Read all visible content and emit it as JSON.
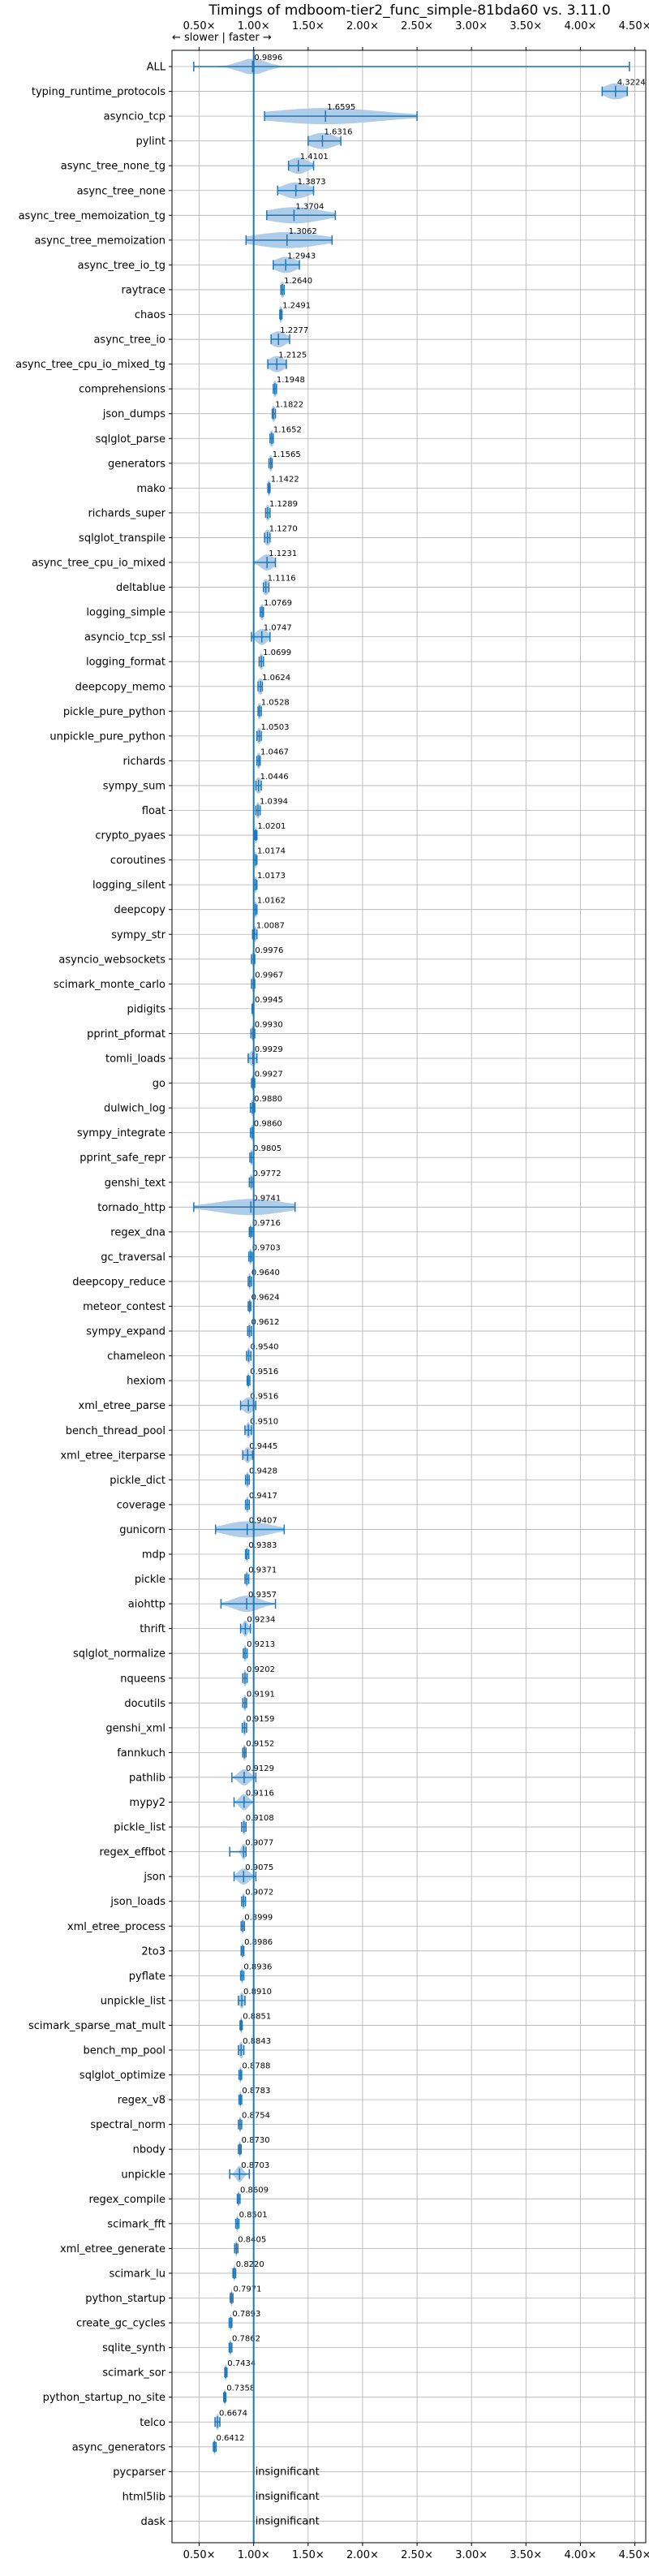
{
  "chart_data": {
    "type": "violin",
    "title": "Timings of mdboom-tier2_func_simple-81bda60 vs. 3.11.0",
    "direction_label": "← slower | faster →",
    "x_tick_labels": [
      "0.50×",
      "1.00×",
      "1.50×",
      "2.00×",
      "2.50×",
      "3.00×",
      "3.50×",
      "4.00×",
      "4.50×"
    ],
    "x_ticks": [
      0.5,
      1.0,
      1.5,
      2.0,
      2.5,
      3.0,
      3.5,
      4.0,
      4.5
    ],
    "xlim": [
      0.25,
      4.6
    ],
    "reference_line": 1.0,
    "grid": true,
    "accent_color": "#1f77b4",
    "violin_color": "#a6c8e6",
    "insignificant_label": "insignificant",
    "benchmarks": [
      {
        "name": "ALL",
        "value": 0.9896,
        "label": "0.9896",
        "lo": 0.45,
        "hi": 4.45,
        "spread": 0.12
      },
      {
        "name": "typing_runtime_protocols",
        "value": 4.3224,
        "label": "4.3224",
        "lo": 4.2,
        "hi": 4.43,
        "spread": 0.1
      },
      {
        "name": "asyncio_tcp",
        "value": 1.6595,
        "label": "1.6595",
        "lo": 1.1,
        "hi": 2.5,
        "spread": 0.5
      },
      {
        "name": "pylint",
        "value": 1.6316,
        "label": "1.6316",
        "lo": 1.5,
        "hi": 1.8,
        "spread": 0.12
      },
      {
        "name": "async_tree_none_tg",
        "value": 1.4101,
        "label": "1.4101",
        "lo": 1.32,
        "hi": 1.55,
        "spread": 0.09
      },
      {
        "name": "async_tree_none",
        "value": 1.3873,
        "label": "1.3873",
        "lo": 1.22,
        "hi": 1.55,
        "spread": 0.12
      },
      {
        "name": "async_tree_memoization_tg",
        "value": 1.3704,
        "label": "1.3704",
        "lo": 1.12,
        "hi": 1.75,
        "spread": 0.25
      },
      {
        "name": "async_tree_memoization",
        "value": 1.3062,
        "label": "1.3062",
        "lo": 0.93,
        "hi": 1.72,
        "spread": 0.3
      },
      {
        "name": "async_tree_io_tg",
        "value": 1.2943,
        "label": "1.2943",
        "lo": 1.18,
        "hi": 1.42,
        "spread": 0.1
      },
      {
        "name": "raytrace",
        "value": 1.264,
        "label": "1.2640",
        "lo": 1.25,
        "hi": 1.28,
        "spread": 0.02
      },
      {
        "name": "chaos",
        "value": 1.2491,
        "label": "1.2491",
        "lo": 1.24,
        "hi": 1.26,
        "spread": 0.02
      },
      {
        "name": "async_tree_io",
        "value": 1.2277,
        "label": "1.2277",
        "lo": 1.16,
        "hi": 1.33,
        "spread": 0.07
      },
      {
        "name": "async_tree_cpu_io_mixed_tg",
        "value": 1.2125,
        "label": "1.2125",
        "lo": 1.13,
        "hi": 1.3,
        "spread": 0.07
      },
      {
        "name": "comprehensions",
        "value": 1.1948,
        "label": "1.1948",
        "lo": 1.18,
        "hi": 1.21,
        "spread": 0.02
      },
      {
        "name": "json_dumps",
        "value": 1.1822,
        "label": "1.1822",
        "lo": 1.17,
        "hi": 1.2,
        "spread": 0.02
      },
      {
        "name": "sqlglot_parse",
        "value": 1.1652,
        "label": "1.1652",
        "lo": 1.15,
        "hi": 1.18,
        "spread": 0.02
      },
      {
        "name": "generators",
        "value": 1.1565,
        "label": "1.1565",
        "lo": 1.14,
        "hi": 1.17,
        "spread": 0.02
      },
      {
        "name": "mako",
        "value": 1.1422,
        "label": "1.1422",
        "lo": 1.13,
        "hi": 1.15,
        "spread": 0.02
      },
      {
        "name": "richards_super",
        "value": 1.1289,
        "label": "1.1289",
        "lo": 1.11,
        "hi": 1.15,
        "spread": 0.02
      },
      {
        "name": "sqlglot_transpile",
        "value": 1.127,
        "label": "1.1270",
        "lo": 1.1,
        "hi": 1.15,
        "spread": 0.03
      },
      {
        "name": "async_tree_cpu_io_mixed",
        "value": 1.1231,
        "label": "1.1231",
        "lo": 1.0,
        "hi": 1.2,
        "spread": 0.06
      },
      {
        "name": "deltablue",
        "value": 1.1116,
        "label": "1.1116",
        "lo": 1.09,
        "hi": 1.14,
        "spread": 0.03
      },
      {
        "name": "logging_simple",
        "value": 1.0769,
        "label": "1.0769",
        "lo": 1.06,
        "hi": 1.09,
        "spread": 0.02
      },
      {
        "name": "asyncio_tcp_ssl",
        "value": 1.0747,
        "label": "1.0747",
        "lo": 0.98,
        "hi": 1.15,
        "spread": 0.05
      },
      {
        "name": "logging_format",
        "value": 1.0699,
        "label": "1.0699",
        "lo": 1.05,
        "hi": 1.09,
        "spread": 0.02
      },
      {
        "name": "deepcopy_memo",
        "value": 1.0624,
        "label": "1.0624",
        "lo": 1.04,
        "hi": 1.08,
        "spread": 0.03
      },
      {
        "name": "pickle_pure_python",
        "value": 1.0528,
        "label": "1.0528",
        "lo": 1.04,
        "hi": 1.07,
        "spread": 0.02
      },
      {
        "name": "unpickle_pure_python",
        "value": 1.0503,
        "label": "1.0503",
        "lo": 1.03,
        "hi": 1.07,
        "spread": 0.02
      },
      {
        "name": "richards",
        "value": 1.0467,
        "label": "1.0467",
        "lo": 1.03,
        "hi": 1.06,
        "spread": 0.02
      },
      {
        "name": "sympy_sum",
        "value": 1.0446,
        "label": "1.0446",
        "lo": 1.02,
        "hi": 1.07,
        "spread": 0.03
      },
      {
        "name": "float",
        "value": 1.0394,
        "label": "1.0394",
        "lo": 1.02,
        "hi": 1.06,
        "spread": 0.02
      },
      {
        "name": "crypto_pyaes",
        "value": 1.0201,
        "label": "1.0201",
        "lo": 1.01,
        "hi": 1.03,
        "spread": 0.015
      },
      {
        "name": "coroutines",
        "value": 1.0174,
        "label": "1.0174",
        "lo": 1.0,
        "hi": 1.03,
        "spread": 0.015
      },
      {
        "name": "logging_silent",
        "value": 1.0173,
        "label": "1.0173",
        "lo": 1.0,
        "hi": 1.03,
        "spread": 0.015
      },
      {
        "name": "deepcopy",
        "value": 1.0162,
        "label": "1.0162",
        "lo": 1.0,
        "hi": 1.03,
        "spread": 0.02
      },
      {
        "name": "sympy_str",
        "value": 1.0087,
        "label": "1.0087",
        "lo": 0.99,
        "hi": 1.03,
        "spread": 0.02
      },
      {
        "name": "asyncio_websockets",
        "value": 0.9976,
        "label": "0.9976",
        "lo": 0.98,
        "hi": 1.01,
        "spread": 0.015
      },
      {
        "name": "scimark_monte_carlo",
        "value": 0.9967,
        "label": "0.9967",
        "lo": 0.98,
        "hi": 1.01,
        "spread": 0.015
      },
      {
        "name": "pidigits",
        "value": 0.9945,
        "label": "0.9945",
        "lo": 0.985,
        "hi": 1.0,
        "spread": 0.01
      },
      {
        "name": "pprint_pformat",
        "value": 0.993,
        "label": "0.9930",
        "lo": 0.975,
        "hi": 1.01,
        "spread": 0.015
      },
      {
        "name": "tomli_loads",
        "value": 0.9929,
        "label": "0.9929",
        "lo": 0.95,
        "hi": 1.03,
        "spread": 0.03
      },
      {
        "name": "go",
        "value": 0.9927,
        "label": "0.9927",
        "lo": 0.98,
        "hi": 1.01,
        "spread": 0.015
      },
      {
        "name": "dulwich_log",
        "value": 0.988,
        "label": "0.9880",
        "lo": 0.97,
        "hi": 1.01,
        "spread": 0.015
      },
      {
        "name": "sympy_integrate",
        "value": 0.986,
        "label": "0.9860",
        "lo": 0.97,
        "hi": 1.0,
        "spread": 0.015
      },
      {
        "name": "pprint_safe_repr",
        "value": 0.9805,
        "label": "0.9805",
        "lo": 0.965,
        "hi": 1.0,
        "spread": 0.015
      },
      {
        "name": "genshi_text",
        "value": 0.9772,
        "label": "0.9772",
        "lo": 0.96,
        "hi": 0.995,
        "spread": 0.015
      },
      {
        "name": "tornado_http",
        "value": 0.9741,
        "label": "0.9741",
        "lo": 0.45,
        "hi": 1.38,
        "spread": 0.3
      },
      {
        "name": "regex_dna",
        "value": 0.9716,
        "label": "0.9716",
        "lo": 0.96,
        "hi": 0.985,
        "spread": 0.01
      },
      {
        "name": "gc_traversal",
        "value": 0.9703,
        "label": "0.9703",
        "lo": 0.955,
        "hi": 0.985,
        "spread": 0.015
      },
      {
        "name": "deepcopy_reduce",
        "value": 0.964,
        "label": "0.9640",
        "lo": 0.95,
        "hi": 0.98,
        "spread": 0.015
      },
      {
        "name": "meteor_contest",
        "value": 0.9624,
        "label": "0.9624",
        "lo": 0.95,
        "hi": 0.975,
        "spread": 0.01
      },
      {
        "name": "sympy_expand",
        "value": 0.9612,
        "label": "0.9612",
        "lo": 0.945,
        "hi": 0.98,
        "spread": 0.015
      },
      {
        "name": "chameleon",
        "value": 0.954,
        "label": "0.9540",
        "lo": 0.935,
        "hi": 0.975,
        "spread": 0.015
      },
      {
        "name": "hexiom",
        "value": 0.9516,
        "label": "0.9516",
        "lo": 0.94,
        "hi": 0.965,
        "spread": 0.01
      },
      {
        "name": "xml_etree_parse",
        "value": 0.9516,
        "label": "0.9516",
        "lo": 0.88,
        "hi": 1.02,
        "spread": 0.05
      },
      {
        "name": "bench_thread_pool",
        "value": 0.951,
        "label": "0.9510",
        "lo": 0.92,
        "hi": 0.98,
        "spread": 0.02
      },
      {
        "name": "xml_etree_iterparse",
        "value": 0.9445,
        "label": "0.9445",
        "lo": 0.9,
        "hi": 0.99,
        "spread": 0.03
      },
      {
        "name": "pickle_dict",
        "value": 0.9428,
        "label": "0.9428",
        "lo": 0.925,
        "hi": 0.96,
        "spread": 0.015
      },
      {
        "name": "coverage",
        "value": 0.9417,
        "label": "0.9417",
        "lo": 0.925,
        "hi": 0.96,
        "spread": 0.015
      },
      {
        "name": "gunicorn",
        "value": 0.9407,
        "label": "0.9407",
        "lo": 0.65,
        "hi": 1.28,
        "spread": 0.2
      },
      {
        "name": "mdp",
        "value": 0.9383,
        "label": "0.9383",
        "lo": 0.925,
        "hi": 0.955,
        "spread": 0.01
      },
      {
        "name": "pickle",
        "value": 0.9371,
        "label": "0.9371",
        "lo": 0.92,
        "hi": 0.955,
        "spread": 0.015
      },
      {
        "name": "aiohttp",
        "value": 0.9357,
        "label": "0.9357",
        "lo": 0.7,
        "hi": 1.2,
        "spread": 0.12
      },
      {
        "name": "thrift",
        "value": 0.9234,
        "label": "0.9234",
        "lo": 0.88,
        "hi": 0.97,
        "spread": 0.025
      },
      {
        "name": "sqlglot_normalize",
        "value": 0.9213,
        "label": "0.9213",
        "lo": 0.905,
        "hi": 0.94,
        "spread": 0.015
      },
      {
        "name": "nqueens",
        "value": 0.9202,
        "label": "0.9202",
        "lo": 0.9,
        "hi": 0.94,
        "spread": 0.015
      },
      {
        "name": "docutils",
        "value": 0.9191,
        "label": "0.9191",
        "lo": 0.9,
        "hi": 0.935,
        "spread": 0.015
      },
      {
        "name": "genshi_xml",
        "value": 0.9159,
        "label": "0.9159",
        "lo": 0.895,
        "hi": 0.935,
        "spread": 0.015
      },
      {
        "name": "fannkuch",
        "value": 0.9152,
        "label": "0.9152",
        "lo": 0.9,
        "hi": 0.93,
        "spread": 0.015
      },
      {
        "name": "pathlib",
        "value": 0.9129,
        "label": "0.9129",
        "lo": 0.8,
        "hi": 1.02,
        "spread": 0.05
      },
      {
        "name": "mypy2",
        "value": 0.9116,
        "label": "0.9116",
        "lo": 0.82,
        "hi": 1.0,
        "spread": 0.04
      },
      {
        "name": "pickle_list",
        "value": 0.9108,
        "label": "0.9108",
        "lo": 0.89,
        "hi": 0.93,
        "spread": 0.015
      },
      {
        "name": "regex_effbot",
        "value": 0.9077,
        "label": "0.9077",
        "lo": 0.78,
        "hi": 0.93,
        "spread": 0.02
      },
      {
        "name": "json",
        "value": 0.9075,
        "label": "0.9075",
        "lo": 0.82,
        "hi": 1.02,
        "spread": 0.05
      },
      {
        "name": "json_loads",
        "value": 0.9072,
        "label": "0.9072",
        "lo": 0.89,
        "hi": 0.925,
        "spread": 0.015
      },
      {
        "name": "xml_etree_process",
        "value": 0.8999,
        "label": "0.8999",
        "lo": 0.885,
        "hi": 0.915,
        "spread": 0.01
      },
      {
        "name": "2to3",
        "value": 0.8986,
        "label": "0.8986",
        "lo": 0.885,
        "hi": 0.91,
        "spread": 0.01
      },
      {
        "name": "pyflate",
        "value": 0.8936,
        "label": "0.8936",
        "lo": 0.88,
        "hi": 0.91,
        "spread": 0.01
      },
      {
        "name": "unpickle_list",
        "value": 0.891,
        "label": "0.8910",
        "lo": 0.86,
        "hi": 0.92,
        "spread": 0.02
      },
      {
        "name": "scimark_sparse_mat_mult",
        "value": 0.8851,
        "label": "0.8851",
        "lo": 0.875,
        "hi": 0.895,
        "spread": 0.01
      },
      {
        "name": "bench_mp_pool",
        "value": 0.8843,
        "label": "0.8843",
        "lo": 0.86,
        "hi": 0.91,
        "spread": 0.02
      },
      {
        "name": "sqlglot_optimize",
        "value": 0.8788,
        "label": "0.8788",
        "lo": 0.865,
        "hi": 0.89,
        "spread": 0.01
      },
      {
        "name": "regex_v8",
        "value": 0.8783,
        "label": "0.8783",
        "lo": 0.865,
        "hi": 0.89,
        "spread": 0.01
      },
      {
        "name": "spectral_norm",
        "value": 0.8754,
        "label": "0.8754",
        "lo": 0.86,
        "hi": 0.89,
        "spread": 0.01
      },
      {
        "name": "nbody",
        "value": 0.873,
        "label": "0.8730",
        "lo": 0.86,
        "hi": 0.885,
        "spread": 0.01
      },
      {
        "name": "unpickle",
        "value": 0.8703,
        "label": "0.8703",
        "lo": 0.78,
        "hi": 0.96,
        "spread": 0.03
      },
      {
        "name": "regex_compile",
        "value": 0.8609,
        "label": "0.8609",
        "lo": 0.85,
        "hi": 0.875,
        "spread": 0.01
      },
      {
        "name": "scimark_fft",
        "value": 0.8501,
        "label": "0.8501",
        "lo": 0.835,
        "hi": 0.865,
        "spread": 0.01
      },
      {
        "name": "xml_etree_generate",
        "value": 0.8405,
        "label": "0.8405",
        "lo": 0.825,
        "hi": 0.855,
        "spread": 0.01
      },
      {
        "name": "scimark_lu",
        "value": 0.822,
        "label": "0.8220",
        "lo": 0.81,
        "hi": 0.835,
        "spread": 0.01
      },
      {
        "name": "python_startup",
        "value": 0.7971,
        "label": "0.7971",
        "lo": 0.785,
        "hi": 0.81,
        "spread": 0.01
      },
      {
        "name": "create_gc_cycles",
        "value": 0.7893,
        "label": "0.7893",
        "lo": 0.775,
        "hi": 0.8,
        "spread": 0.01
      },
      {
        "name": "sqlite_synth",
        "value": 0.7862,
        "label": "0.7862",
        "lo": 0.775,
        "hi": 0.8,
        "spread": 0.01
      },
      {
        "name": "scimark_sor",
        "value": 0.7434,
        "label": "0.7434",
        "lo": 0.735,
        "hi": 0.755,
        "spread": 0.01
      },
      {
        "name": "python_startup_no_site",
        "value": 0.7358,
        "label": "0.7358",
        "lo": 0.725,
        "hi": 0.745,
        "spread": 0.01
      },
      {
        "name": "telco",
        "value": 0.6674,
        "label": "0.6674",
        "lo": 0.645,
        "hi": 0.69,
        "spread": 0.015
      },
      {
        "name": "async_generators",
        "value": 0.6412,
        "label": "0.6412",
        "lo": 0.63,
        "hi": 0.655,
        "spread": 0.01
      },
      {
        "name": "pycparser",
        "value": null,
        "label": "insignificant"
      },
      {
        "name": "html5lib",
        "value": null,
        "label": "insignificant"
      },
      {
        "name": "dask",
        "value": null,
        "label": "insignificant"
      }
    ]
  }
}
